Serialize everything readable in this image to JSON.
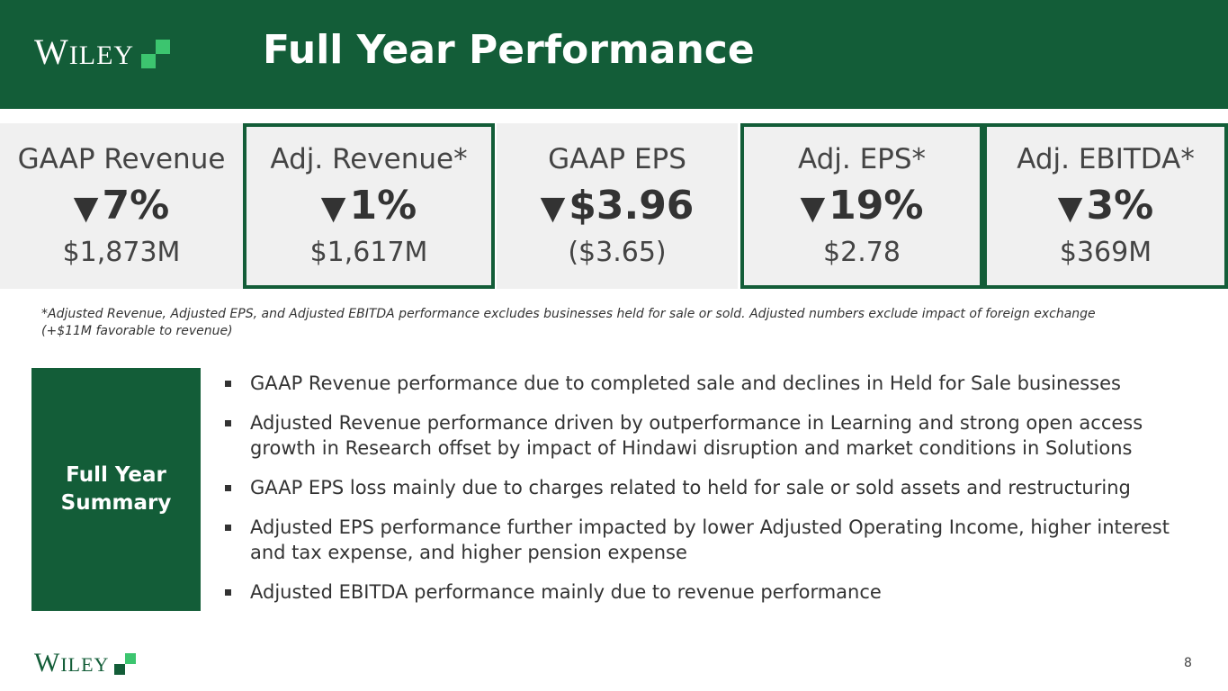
{
  "header": {
    "logo": {
      "first": "W",
      "rest": "ILEY"
    },
    "title": "Full Year Performance"
  },
  "metrics": [
    {
      "label": "GAAP Revenue",
      "arrow": "▼",
      "change": "7%",
      "value": "$1,873M",
      "highlight": false
    },
    {
      "label": "Adj. Revenue*",
      "arrow": "▼",
      "change": "1%",
      "value": "$1,617M",
      "highlight": true
    },
    {
      "label": "GAAP EPS",
      "arrow": "▼",
      "change": "$3.96",
      "value": "($3.65)",
      "highlight": false
    },
    {
      "label": "Adj. EPS*",
      "arrow": "▼",
      "change": "19%",
      "value": "$2.78",
      "highlight": true
    },
    {
      "label": "Adj. EBITDA*",
      "arrow": "▼",
      "change": "3%",
      "value": "$369M",
      "highlight": true
    }
  ],
  "footnote": "*Adjusted Revenue, Adjusted EPS, and Adjusted EBITDA performance excludes businesses held for sale or sold.  Adjusted numbers exclude impact of foreign exchange (+$11M favorable to revenue)",
  "summary": {
    "label_line1": "Full Year",
    "label_line2": "Summary",
    "bullets": [
      "GAAP Revenue performance due to completed sale and declines in Held for Sale businesses",
      "Adjusted Revenue performance driven by outperformance in Learning and strong open access growth in Research offset by impact of Hindawi disruption and market conditions in Solutions",
      "GAAP EPS loss mainly due to charges related to held for sale or sold assets and restructuring",
      "Adjusted EPS performance further impacted by lower Adjusted Operating Income, higher interest and tax expense, and higher pension expense",
      "Adjusted EBITDA performance mainly due to revenue performance"
    ]
  },
  "footer": {
    "logo": {
      "first": "W",
      "rest": "ILEY"
    },
    "page_number": "8"
  },
  "colors": {
    "brand_green": "#135d38",
    "accent_green": "#3cc56f",
    "panel_gray": "#f0f0f0"
  }
}
